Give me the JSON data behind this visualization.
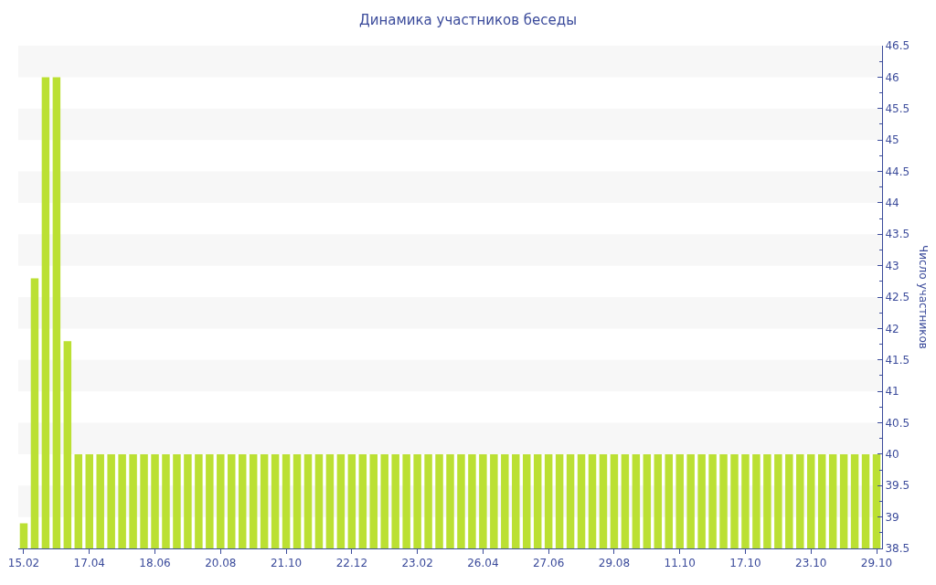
{
  "chart_data": {
    "type": "bar",
    "title": "Динамика участников беседы",
    "ylabel": "Число участников",
    "categories": [
      "15.02",
      null,
      null,
      null,
      null,
      null,
      "17.04",
      null,
      null,
      null,
      null,
      null,
      "18.06",
      null,
      null,
      null,
      null,
      null,
      "20.08",
      null,
      null,
      null,
      null,
      null,
      "21.10",
      null,
      null,
      null,
      null,
      null,
      "22.12",
      null,
      null,
      null,
      null,
      null,
      "23.02",
      null,
      null,
      null,
      null,
      null,
      "26.04",
      null,
      null,
      null,
      null,
      null,
      "27.06",
      null,
      null,
      null,
      null,
      null,
      "29.08",
      null,
      null,
      null,
      null,
      null,
      "11.10",
      null,
      null,
      null,
      null,
      null,
      "17.10",
      null,
      null,
      null,
      null,
      null,
      "23.10",
      null,
      null,
      null,
      null,
      null,
      "29.10"
    ],
    "values": [
      38.9,
      42.8,
      46,
      46,
      41.8,
      40,
      40,
      40,
      40,
      40,
      40,
      40,
      40,
      40,
      40,
      40,
      40,
      40,
      40,
      40,
      40,
      40,
      40,
      40,
      40,
      40,
      40,
      40,
      40,
      40,
      40,
      40,
      40,
      40,
      40,
      40,
      40,
      40,
      40,
      40,
      40,
      40,
      40,
      40,
      40,
      40,
      40,
      40,
      40,
      40,
      40,
      40,
      40,
      40,
      40,
      40,
      40,
      40,
      40,
      40,
      40,
      40,
      40,
      40,
      40,
      40,
      40,
      40,
      40,
      40,
      40,
      40,
      40,
      40,
      40,
      40,
      40,
      40,
      40
    ],
    "color": "#bbe033",
    "ylim": [
      38.5,
      46.5
    ],
    "yticks": [
      38.5,
      39,
      39.5,
      40,
      40.5,
      41,
      41.5,
      42,
      42.5,
      43,
      43.5,
      44,
      44.5,
      45,
      45.5,
      46,
      46.5
    ],
    "bands": [
      {
        "axis": "y",
        "from": 39,
        "to": 39.5,
        "color": "#f7f7f7"
      },
      {
        "axis": "y",
        "from": 40,
        "to": 40.5,
        "color": "#f7f7f7"
      },
      {
        "axis": "y",
        "from": 41,
        "to": 41.5,
        "color": "#f7f7f7"
      },
      {
        "axis": "y",
        "from": 42,
        "to": 42.5,
        "color": "#f7f7f7"
      },
      {
        "axis": "y",
        "from": 43,
        "to": 43.5,
        "color": "#f7f7f7"
      },
      {
        "axis": "y",
        "from": 44,
        "to": 44.5,
        "color": "#f7f7f7"
      },
      {
        "axis": "y",
        "from": 45,
        "to": 45.5,
        "color": "#f7f7f7"
      },
      {
        "axis": "y",
        "from": 46,
        "to": 46.5,
        "color": "#f7f7f7"
      }
    ]
  }
}
